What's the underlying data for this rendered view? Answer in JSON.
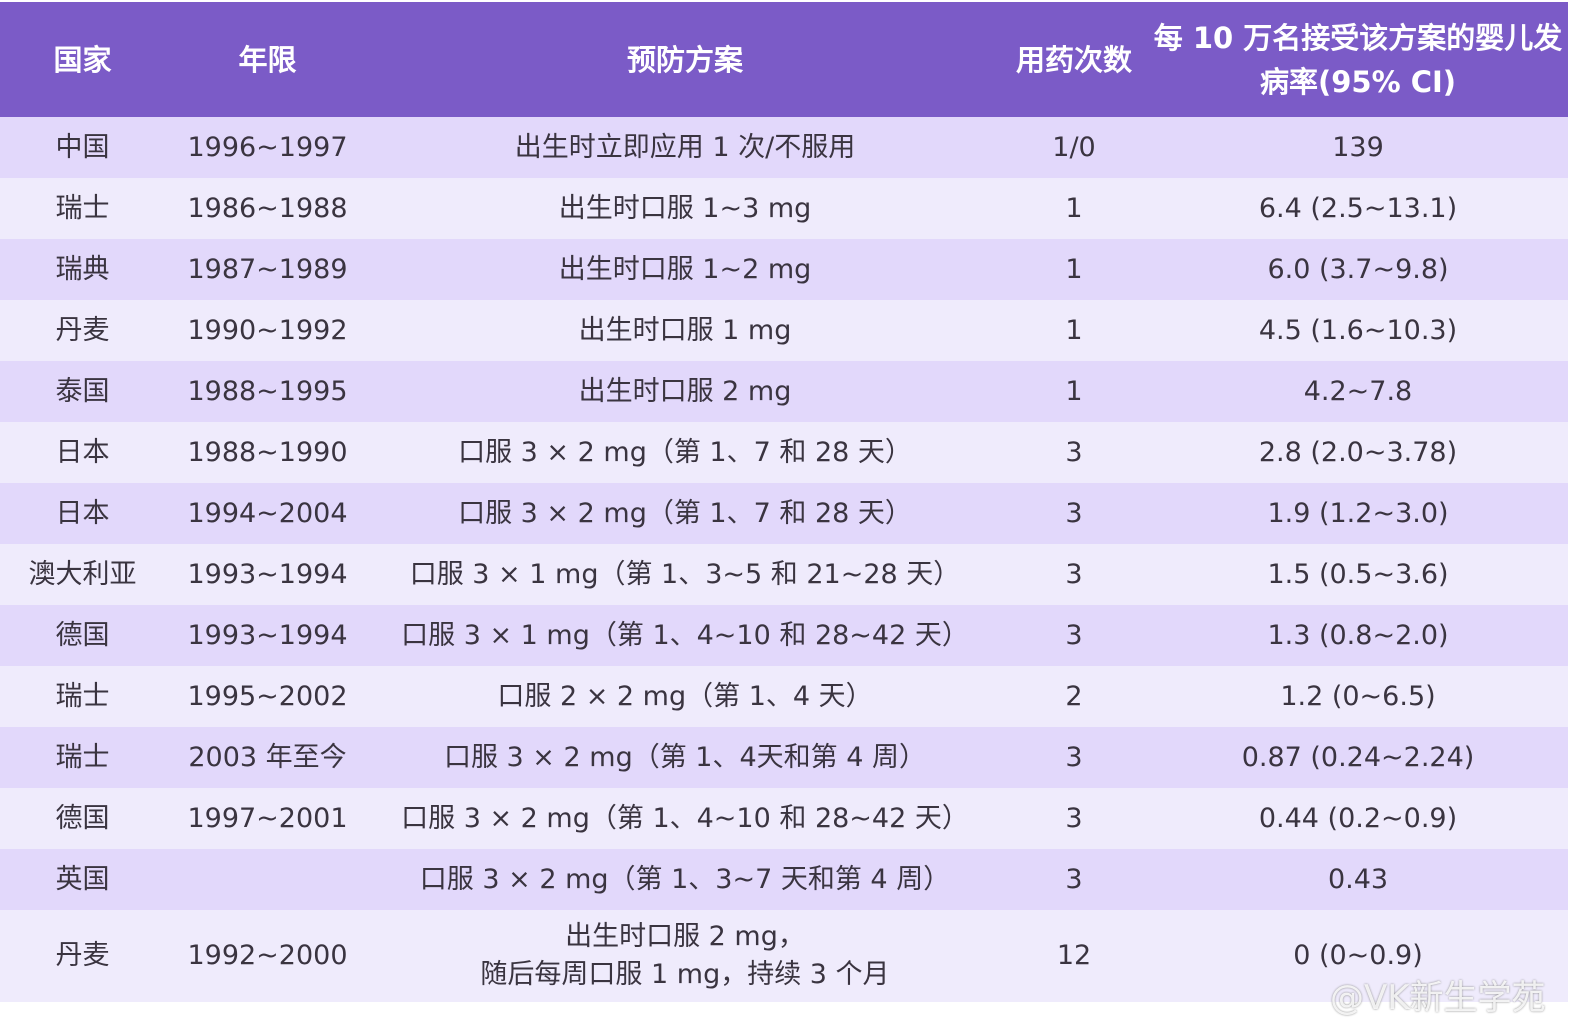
{
  "headers": [
    "国家",
    "年限",
    "预防方案",
    "用药次数",
    "每 10 万名接受该方案的婴儿发病率(95% CI)"
  ],
  "rows": [
    [
      "中国",
      "1996~1997",
      "出生时立即应用 1 次/不服用",
      "1/0",
      "139"
    ],
    [
      "瑞士",
      "1986~1988",
      "出生时口服 1~3 mg",
      "1",
      "6.4 (2.5~13.1)"
    ],
    [
      "瑞典",
      "1987~1989",
      "出生时口服 1~2 mg",
      "1",
      "6.0 (3.7~9.8)"
    ],
    [
      "丹麦",
      "1990~1992",
      "出生时口服 1 mg",
      "1",
      "4.5 (1.6~10.3)"
    ],
    [
      "泰国",
      "1988~1995",
      "出生时口服 2 mg",
      "1",
      "4.2~7.8"
    ],
    [
      "日本",
      "1988~1990",
      "口服 3 × 2 mg（第 1、7 和 28 天）",
      "3",
      "2.8 (2.0~3.78)"
    ],
    [
      "日本",
      "1994~2004",
      "口服 3 × 2 mg（第 1、7 和 28 天）",
      "3",
      "1.9 (1.2~3.0)"
    ],
    [
      "澳大利亚",
      "1993~1994",
      "口服 3 × 1 mg（第 1、3~5 和 21~28 天）",
      "3",
      "1.5 (0.5~3.6)"
    ],
    [
      "德国",
      "1993~1994",
      "口服 3 × 1 mg（第 1、4~10 和 28~42 天）",
      "3",
      "1.3 (0.8~2.0)"
    ],
    [
      "瑞士",
      "1995~2002",
      "口服 2 × 2 mg（第 1、4 天）",
      "2",
      "1.2 (0~6.5)"
    ],
    [
      "瑞士",
      "2003 年至今",
      "口服 3 × 2 mg（第 1、4天和第 4 周）",
      "3",
      "0.87 (0.24~2.24)"
    ],
    [
      "德国",
      "1997~2001",
      "口服 3 × 2 mg（第 1、4~10 和 28~42 天）",
      "3",
      "0.44 (0.2~0.9)"
    ],
    [
      "英国",
      "",
      "口服 3 × 2 mg（第 1、3~7 天和第 4 周）",
      "3",
      "0.43"
    ],
    [
      "丹麦",
      "1992~2000",
      "出生时口服 2 mg，\n随后每周口服 1 mg，持续 3 个月",
      "12",
      "0 (0~0.9)"
    ]
  ],
  "watermark": "@VK新生学苑",
  "colors": {
    "header": "#7b5bc7",
    "row_odd": "#e2d8fb",
    "row_even": "#efebfc"
  }
}
